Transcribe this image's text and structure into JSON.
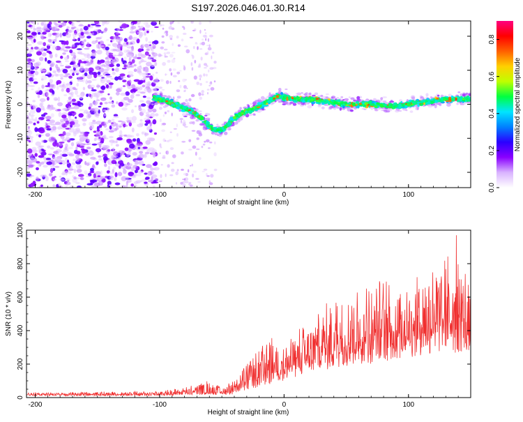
{
  "title": "S197.2026.046.01.30.R14",
  "chart_data": [
    {
      "type": "heatmap",
      "title": "S197.2026.046.01.30.R14",
      "xlabel": "Height of straight line (km)",
      "ylabel": "Frequency (Hz)",
      "xlim": [
        -207,
        150
      ],
      "ylim": [
        -24.5,
        24.5
      ],
      "xticks": [
        -200,
        -100,
        0,
        100
      ],
      "yticks": [
        -20,
        -10,
        0,
        10,
        20
      ],
      "colorbar": {
        "label": "Normalized spectral amplitude",
        "range": [
          0.0,
          0.9
        ],
        "ticks": [
          0.0,
          0.2,
          0.4,
          0.6,
          0.8
        ],
        "colors": [
          "#ffffff",
          "#d9b3ff",
          "#8a00ff",
          "#2a00ff",
          "#0080ff",
          "#00e5ff",
          "#00ff40",
          "#bfff00",
          "#ffd000",
          "#ff6000",
          "#ff0000",
          "#ff0080"
        ]
      },
      "ridge_centerline": {
        "x": [
          -105,
          -95,
          -85,
          -75,
          -65,
          -60,
          -55,
          -50,
          -45,
          -40,
          -35,
          -30,
          -25,
          -20,
          -15,
          -10,
          -5,
          0,
          10,
          20,
          30,
          40,
          50,
          60,
          70,
          80,
          90,
          100,
          110,
          120,
          130,
          140,
          150
        ],
        "y": [
          2,
          1,
          -0.5,
          -2,
          -4.5,
          -6.5,
          -7.5,
          -7.5,
          -6,
          -4,
          -3,
          -2,
          -1.5,
          -0.5,
          0.5,
          1.5,
          2.5,
          2,
          1.5,
          1.5,
          1,
          0.5,
          0,
          0,
          0,
          -0.5,
          -0.5,
          0,
          0.5,
          1,
          1.5,
          1.5,
          1.5
        ]
      }
    },
    {
      "type": "line",
      "xlabel": "Height of straight line (km)",
      "ylabel": "SNR (10 * v/v)",
      "xlim": [
        -207,
        150
      ],
      "ylim": [
        0,
        1000
      ],
      "xticks": [
        -200,
        -100,
        0,
        100
      ],
      "yticks": [
        0,
        200,
        400,
        600,
        800,
        1000
      ],
      "line_color": "#f03030",
      "series": [
        {
          "name": "SNR",
          "envelope_x": [
            -207,
            -150,
            -100,
            -90,
            -80,
            -70,
            -60,
            -50,
            -40,
            -30,
            -20,
            -10,
            0,
            10,
            20,
            30,
            40,
            50,
            60,
            70,
            80,
            90,
            100,
            110,
            120,
            130,
            140,
            150
          ],
          "envelope_low": [
            10,
            10,
            10,
            12,
            15,
            15,
            18,
            15,
            20,
            40,
            60,
            80,
            100,
            120,
            140,
            150,
            170,
            180,
            200,
            200,
            220,
            220,
            230,
            250,
            250,
            260,
            260,
            280
          ],
          "envelope_high": [
            30,
            35,
            40,
            50,
            60,
            80,
            110,
            60,
            120,
            200,
            300,
            380,
            320,
            400,
            480,
            540,
            600,
            620,
            650,
            700,
            700,
            720,
            760,
            800,
            900,
            820,
            1000,
            600
          ]
        }
      ]
    }
  ]
}
